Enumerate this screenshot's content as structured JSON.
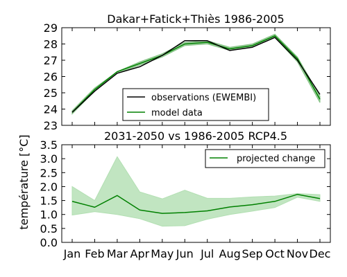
{
  "chart_data": [
    {
      "type": "line",
      "title": "Dakar+Fatick+Thiès 1986-2005",
      "ylabel": "température [°C]",
      "ylim": [
        23,
        29
      ],
      "yticks": [
        23,
        24,
        25,
        26,
        27,
        28,
        29
      ],
      "categories": [
        "Jan",
        "Feb",
        "Mar",
        "Apr",
        "May",
        "Jun",
        "Jul",
        "Aug",
        "Sep",
        "Oct",
        "Nov",
        "Dec"
      ],
      "series": [
        {
          "name": "observations (EWEMBI)",
          "color": "#000000",
          "values": [
            23.8,
            25.1,
            26.2,
            26.6,
            27.3,
            28.2,
            28.2,
            27.6,
            27.8,
            28.4,
            27.0,
            24.9
          ]
        },
        {
          "name": "model data",
          "color": "#008000",
          "values": [
            23.8,
            25.2,
            26.3,
            26.8,
            27.3,
            28.0,
            28.1,
            27.7,
            27.9,
            28.5,
            27.1,
            24.6
          ]
        }
      ],
      "band": {
        "color": "#7fbf7f",
        "lower": [
          23.7,
          25.1,
          26.2,
          26.7,
          27.2,
          27.9,
          28.0,
          27.6,
          27.8,
          28.4,
          26.9,
          24.4
        ],
        "upper": [
          23.9,
          25.3,
          26.3,
          26.9,
          27.4,
          28.1,
          28.2,
          27.8,
          28.0,
          28.6,
          27.2,
          24.8
        ]
      }
    },
    {
      "type": "line",
      "title": "2031-2050 vs 1986-2005 RCP4.5",
      "ylim": [
        0.0,
        3.5
      ],
      "yticks": [
        "0.0",
        "0.5",
        "1.0",
        "1.5",
        "2.0",
        "2.5",
        "3.0",
        "3.5"
      ],
      "categories": [
        "Jan",
        "Feb",
        "Mar",
        "Apr",
        "May",
        "Jun",
        "Jul",
        "Aug",
        "Sep",
        "Oct",
        "Nov",
        "Dec"
      ],
      "series": [
        {
          "name": "projected change",
          "color": "#008000",
          "values": [
            1.47,
            1.26,
            1.68,
            1.16,
            1.04,
            1.07,
            1.13,
            1.27,
            1.35,
            1.47,
            1.72,
            1.57
          ]
        }
      ],
      "band": {
        "color": "#b2dfb2",
        "lower": [
          0.98,
          1.1,
          1.0,
          0.85,
          0.58,
          0.6,
          0.83,
          1.0,
          1.12,
          1.25,
          1.62,
          1.47
        ],
        "upper": [
          2.0,
          1.5,
          3.07,
          1.81,
          1.56,
          1.87,
          1.58,
          1.58,
          1.63,
          1.66,
          1.75,
          1.71
        ]
      }
    }
  ]
}
